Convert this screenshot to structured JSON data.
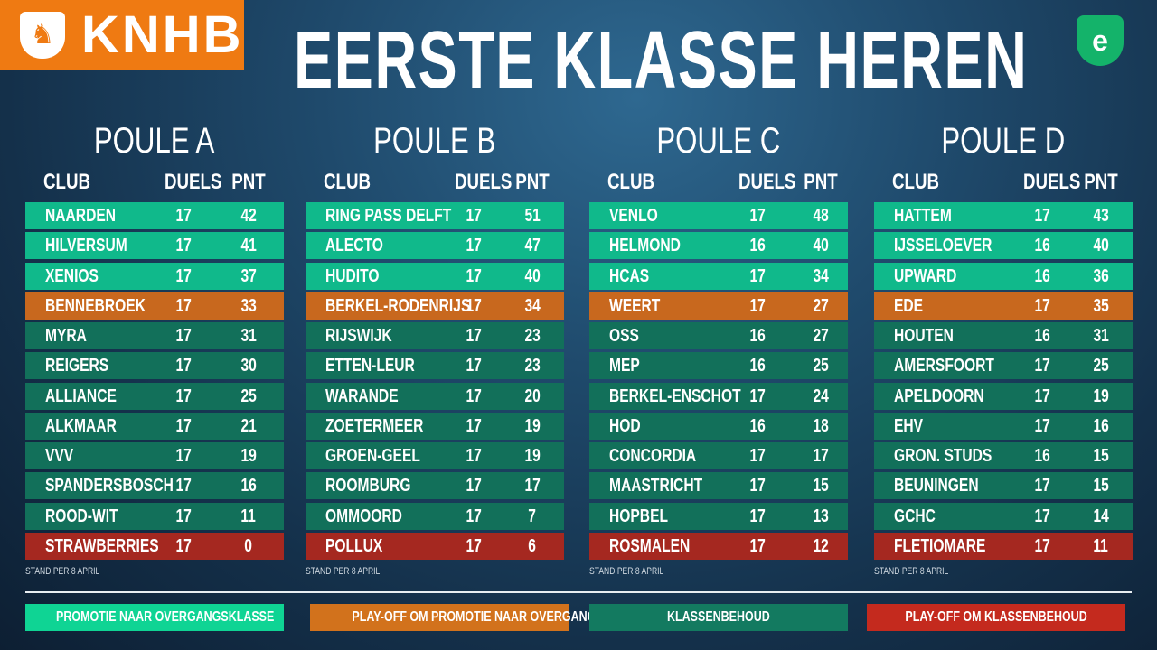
{
  "header": {
    "logo_text": "KNHB",
    "title": "EERSTE KLASSE HEREN"
  },
  "colors": {
    "promo": "#10b98b",
    "playoff_promo": "#c8681e",
    "safe": "#12705a",
    "relegation": "#a52820",
    "legend_promo": "#0fd494",
    "legend_playoff_promo": "#d2721c",
    "legend_safe": "#137a60",
    "legend_relegation": "#c42a1e"
  },
  "columns": {
    "club": "CLUB",
    "duels": "DUELS",
    "points": "PNT"
  },
  "footnote": "STAND PER 8 APRIL",
  "poules": [
    {
      "title": "POULE A",
      "rows": [
        [
          "NAARDEN",
          17,
          42
        ],
        [
          "HILVERSUM",
          17,
          41
        ],
        [
          "XENIOS",
          17,
          37
        ],
        [
          "BENNEBROEK",
          17,
          33
        ],
        [
          "MYRA",
          17,
          31
        ],
        [
          "REIGERS",
          17,
          30
        ],
        [
          "ALLIANCE",
          17,
          25
        ],
        [
          "ALKMAAR",
          17,
          21
        ],
        [
          "VVV",
          17,
          19
        ],
        [
          "SPANDERSBOSCH",
          17,
          16
        ],
        [
          "ROOD-WIT",
          17,
          11
        ],
        [
          "STRAWBERRIES",
          17,
          0
        ]
      ]
    },
    {
      "title": "POULE B",
      "rows": [
        [
          "RING PASS DELFT",
          17,
          51
        ],
        [
          "ALECTO",
          17,
          47
        ],
        [
          "HUDITO",
          17,
          40
        ],
        [
          "BERKEL-RODENRIJS",
          17,
          34
        ],
        [
          "RIJSWIJK",
          17,
          23
        ],
        [
          "ETTEN-LEUR",
          17,
          23
        ],
        [
          "WARANDE",
          17,
          20
        ],
        [
          "ZOETERMEER",
          17,
          19
        ],
        [
          "GROEN-GEEL",
          17,
          19
        ],
        [
          "ROOMBURG",
          17,
          17
        ],
        [
          "OMMOORD",
          17,
          7
        ],
        [
          "POLLUX",
          17,
          6
        ]
      ]
    },
    {
      "title": "POULE C",
      "rows": [
        [
          "VENLO",
          17,
          48
        ],
        [
          "HELMOND",
          16,
          40
        ],
        [
          "HCAS",
          17,
          34
        ],
        [
          "WEERT",
          17,
          27
        ],
        [
          "OSS",
          16,
          27
        ],
        [
          "MEP",
          16,
          25
        ],
        [
          "BERKEL-ENSCHOT",
          17,
          24
        ],
        [
          "HOD",
          16,
          18
        ],
        [
          "CONCORDIA",
          17,
          17
        ],
        [
          "MAASTRICHT",
          17,
          15
        ],
        [
          "HOPBEL",
          17,
          13
        ],
        [
          "ROSMALEN",
          17,
          12
        ]
      ]
    },
    {
      "title": "POULE D",
      "rows": [
        [
          "HATTEM",
          17,
          43
        ],
        [
          "IJSSELOEVER",
          16,
          40
        ],
        [
          "UPWARD",
          16,
          36
        ],
        [
          "EDE",
          17,
          35
        ],
        [
          "HOUTEN",
          16,
          31
        ],
        [
          "AMERSFOORT",
          17,
          25
        ],
        [
          "APELDOORN",
          17,
          19
        ],
        [
          "EHV",
          17,
          16
        ],
        [
          "GRON. STUDS",
          16,
          15
        ],
        [
          "BEUNINGEN",
          17,
          15
        ],
        [
          "GCHC",
          17,
          14
        ],
        [
          "FLETIOMARE",
          17,
          11
        ]
      ]
    }
  ],
  "row_status": [
    "promo",
    "promo",
    "promo",
    "playoff_promo",
    "safe",
    "safe",
    "safe",
    "safe",
    "safe",
    "safe",
    "safe",
    "relegation"
  ],
  "legend": [
    {
      "label": "PROMOTIE NAAR OVERGANGSKLASSE",
      "status": "legend_promo"
    },
    {
      "label": "PLAY-OFF OM PROMOTIE NAAR OVERGANGSKLASSE",
      "status": "legend_playoff_promo"
    },
    {
      "label": "KLASSENBEHOUD",
      "status": "legend_safe"
    },
    {
      "label": "PLAY-OFF OM KLASSENBEHOUD",
      "status": "legend_relegation"
    }
  ]
}
